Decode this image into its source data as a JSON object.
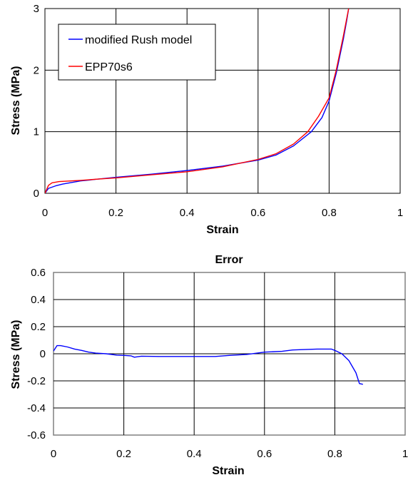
{
  "chart_data": [
    {
      "type": "line",
      "title": "",
      "xlabel": "Strain",
      "ylabel": "Stress (MPa)",
      "xlim": [
        0,
        1
      ],
      "ylim": [
        0,
        3
      ],
      "x_ticks": [
        "0",
        "0.2",
        "0.4",
        "0.6",
        "0.8",
        "1"
      ],
      "y_ticks": [
        "0",
        "1",
        "2",
        "3"
      ],
      "grid": true,
      "legend_position": "top-left",
      "series": [
        {
          "name": "modified Rush model",
          "color": "#0000ff",
          "x": [
            0,
            0.01,
            0.03,
            0.05,
            0.1,
            0.15,
            0.2,
            0.3,
            0.4,
            0.5,
            0.6,
            0.65,
            0.7,
            0.75,
            0.78,
            0.8,
            0.82,
            0.84,
            0.85,
            0.855
          ],
          "y": [
            0,
            0.08,
            0.12,
            0.15,
            0.2,
            0.23,
            0.26,
            0.31,
            0.37,
            0.44,
            0.54,
            0.62,
            0.77,
            1.0,
            1.23,
            1.5,
            1.95,
            2.5,
            2.82,
            3.0
          ]
        },
        {
          "name": "EPP70s6",
          "color": "#ff0000",
          "x": [
            0,
            0.01,
            0.02,
            0.04,
            0.1,
            0.15,
            0.2,
            0.3,
            0.4,
            0.5,
            0.6,
            0.65,
            0.7,
            0.74,
            0.77,
            0.8,
            0.82,
            0.84,
            0.85,
            0.855
          ],
          "y": [
            0,
            0.13,
            0.17,
            0.19,
            0.21,
            0.23,
            0.25,
            0.3,
            0.35,
            0.43,
            0.55,
            0.64,
            0.8,
            1.0,
            1.25,
            1.55,
            2.0,
            2.55,
            2.85,
            3.0
          ]
        }
      ]
    },
    {
      "type": "line",
      "title": "Error",
      "xlabel": "Strain",
      "ylabel": "Stress (MPa)",
      "xlim": [
        0,
        1
      ],
      "ylim": [
        -0.6,
        0.6
      ],
      "x_ticks": [
        "0",
        "0.2",
        "0.4",
        "0.6",
        "0.8",
        "1"
      ],
      "y_ticks": [
        "-0.6",
        "-0.4",
        "-0.2",
        "0",
        "0.2",
        "0.4",
        "0.6"
      ],
      "grid": true,
      "series": [
        {
          "color": "#0000ff",
          "x": [
            0,
            0.005,
            0.01,
            0.02,
            0.04,
            0.06,
            0.08,
            0.1,
            0.12,
            0.15,
            0.18,
            0.2,
            0.22,
            0.23,
            0.25,
            0.3,
            0.4,
            0.46,
            0.5,
            0.55,
            0.6,
            0.65,
            0.68,
            0.7,
            0.75,
            0.79,
            0.8,
            0.82,
            0.84,
            0.86,
            0.87,
            0.88
          ],
          "y": [
            0.02,
            0.04,
            0.06,
            0.06,
            0.05,
            0.035,
            0.025,
            0.012,
            0.005,
            0.0,
            -0.01,
            -0.012,
            -0.015,
            -0.025,
            -0.018,
            -0.02,
            -0.02,
            -0.02,
            -0.012,
            -0.005,
            0.012,
            0.018,
            0.028,
            0.03,
            0.035,
            0.035,
            0.025,
            0.0,
            -0.05,
            -0.14,
            -0.22,
            -0.225
          ]
        }
      ]
    }
  ]
}
